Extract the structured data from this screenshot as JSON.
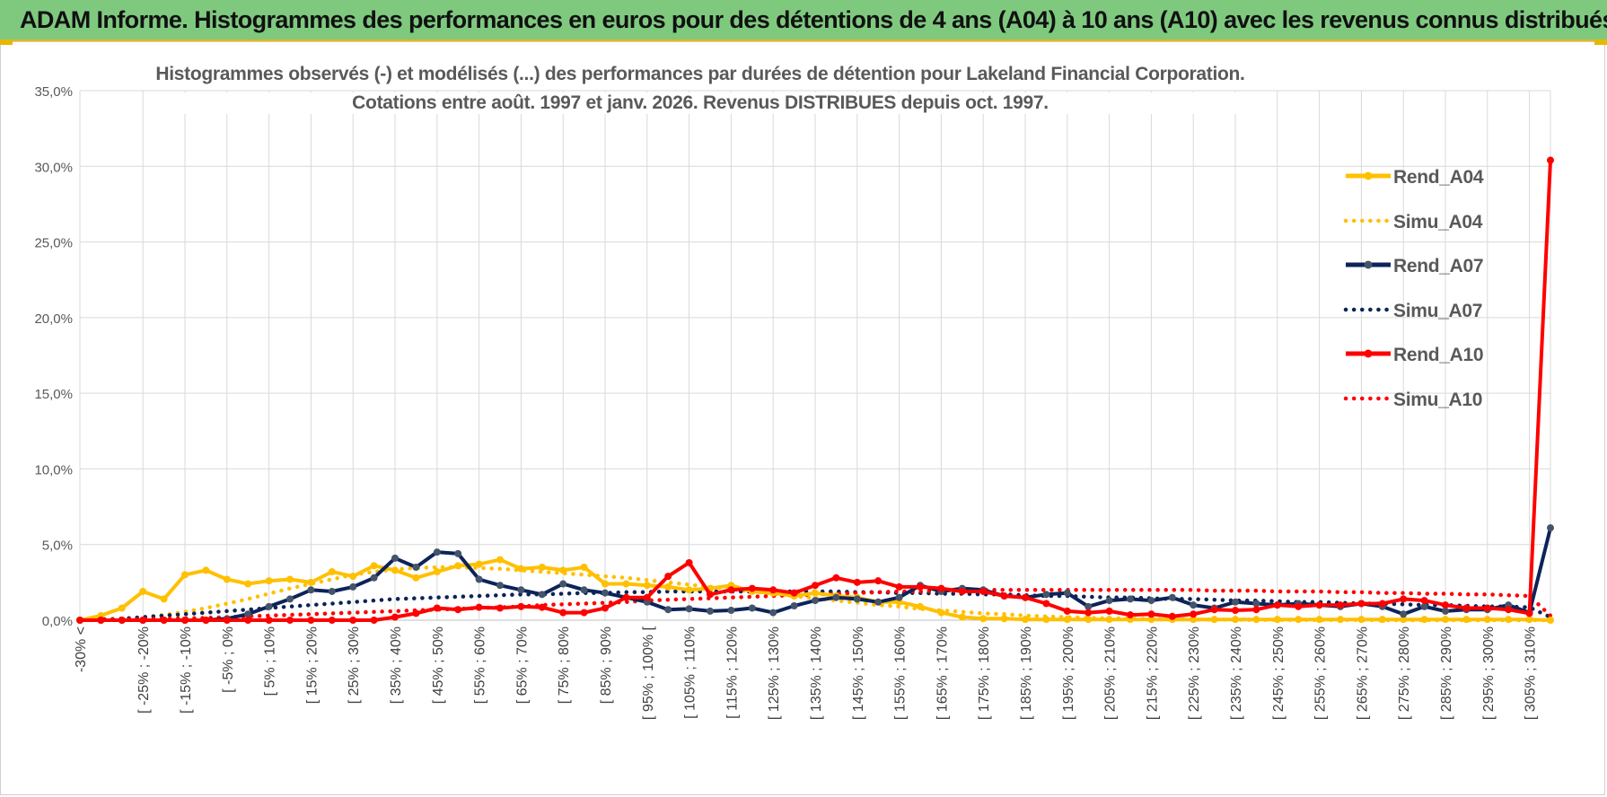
{
  "header": {
    "title": "ADAM Informe. Histogrammes des performances en euros pour des détentions de 4 ans (A04) à 10 ans (A10) avec les revenus connus distribués"
  },
  "chart_data": {
    "type": "line",
    "title_line1": "Histogrammes observés (-) et modélisés (...) des performances par durées de détention pour Lakeland Financial Corporation.",
    "title_line2": "Cotations entre août. 1997 et janv. 2026. Revenus DISTRIBUES depuis oct. 1997.",
    "xlabel": "",
    "ylabel": "",
    "ylim": [
      0,
      35
    ],
    "y_ticks": [
      "0,0%",
      "5,0%",
      "10,0%",
      "15,0%",
      "20,0%",
      "25,0%",
      "30,0%",
      "35,0%"
    ],
    "grid": true,
    "legend_position": "right",
    "x_tick_labels": [
      "-30% <",
      "[ -25% ; -20%",
      "[ -15% ; -10%",
      "[ -5% ; 0%",
      "[ 5% ; 10%",
      "[ 15% ; 20%",
      "[ 25% ; 30%",
      "[ 35% ; 40%",
      "[ 45% ; 50%",
      "[ 55% ; 60%",
      "[ 65% ; 70%",
      "[ 75% ; 80%",
      "[ 85% ; 90%",
      "[ 95% ; 100% [",
      "[ 105% ; 110%",
      "[ 115% ; 120%",
      "[ 125% ; 130%",
      "[ 135% ; 140%",
      "[ 145% ; 150%",
      "[ 155% ; 160%",
      "[ 165% ; 170%",
      "[ 175% ; 180%",
      "[ 185% ; 190%",
      "[ 195% ; 200%",
      "[ 205% ; 210%",
      "[ 215% ; 220%",
      "[ 225% ; 230%",
      "[ 235% ; 240%",
      "[ 245% ; 250%",
      "[ 255% ; 260%",
      "[ 265% ; 270%",
      "[ 275% ; 280%",
      "[ 285% ; 290%",
      "[ 295% ; 300%",
      "[ 305% ; 310%"
    ],
    "series": [
      {
        "name": "Rend_A04",
        "color": "#ffc000",
        "style": "solid",
        "values": [
          0,
          0.3,
          0.8,
          1.9,
          1.4,
          3.0,
          3.3,
          2.7,
          2.4,
          2.6,
          2.7,
          2.5,
          3.2,
          2.9,
          3.6,
          3.3,
          2.8,
          3.2,
          3.6,
          3.7,
          4.0,
          3.4,
          3.5,
          3.3,
          3.5,
          2.4,
          2.4,
          2.3,
          2.2,
          2.0,
          2.1,
          2.3,
          1.9,
          1.8,
          1.6,
          1.8,
          1.6,
          1.5,
          1.2,
          1.2,
          0.9,
          0.5,
          0.2,
          0.1,
          0.1,
          0.05,
          0.05,
          0.05,
          0.05,
          0.05,
          0.05,
          0.05,
          0.05,
          0.05,
          0.05,
          0.05,
          0.05,
          0.05,
          0.05,
          0.05,
          0.05,
          0.05,
          0.05,
          0.05,
          0.05,
          0.05,
          0.05,
          0.05,
          0.05,
          0.05,
          0
        ]
      },
      {
        "name": "Simu_A04",
        "color": "#ffc000",
        "style": "dotted",
        "values": [
          0,
          0.05,
          0.1,
          0.2,
          0.35,
          0.55,
          0.8,
          1.1,
          1.4,
          1.75,
          2.1,
          2.4,
          2.7,
          3.0,
          3.2,
          3.35,
          3.45,
          3.5,
          3.5,
          3.45,
          3.4,
          3.3,
          3.2,
          3.1,
          3.0,
          2.9,
          2.8,
          2.65,
          2.5,
          2.35,
          2.2,
          2.05,
          1.9,
          1.75,
          1.6,
          1.45,
          1.3,
          1.15,
          1.0,
          0.9,
          0.75,
          0.65,
          0.55,
          0.45,
          0.4,
          0.3,
          0.25,
          0.2,
          0.15,
          0.12,
          0.1,
          0.08,
          0.06,
          0.05,
          0.04,
          0.03,
          0.02,
          0.02,
          0.01,
          0.01,
          0.01,
          0.01,
          0,
          0,
          0,
          0,
          0,
          0,
          0,
          0,
          0
        ]
      },
      {
        "name": "Rend_A07",
        "color": "#0d2359",
        "style": "solid",
        "values": [
          0,
          0,
          0,
          0,
          0,
          0,
          0,
          0.1,
          0.4,
          0.9,
          1.4,
          2.0,
          1.9,
          2.2,
          2.8,
          4.1,
          3.5,
          4.5,
          4.4,
          2.7,
          2.3,
          2.0,
          1.7,
          2.4,
          2.0,
          1.8,
          1.5,
          1.2,
          0.7,
          0.75,
          0.6,
          0.65,
          0.8,
          0.5,
          0.95,
          1.3,
          1.5,
          1.4,
          1.2,
          1.5,
          2.3,
          1.9,
          2.1,
          2.0,
          1.6,
          1.5,
          1.7,
          1.8,
          0.9,
          1.3,
          1.4,
          1.3,
          1.5,
          1.0,
          0.8,
          1.2,
          1.1,
          1.0,
          1.1,
          1.0,
          0.9,
          1.1,
          0.9,
          0.4,
          0.9,
          0.6,
          0.7,
          0.7,
          1.0,
          0.5,
          6.1
        ]
      },
      {
        "name": "Simu_A07",
        "color": "#0d2359",
        "style": "dotted",
        "values": [
          0,
          0.05,
          0.1,
          0.2,
          0.3,
          0.4,
          0.5,
          0.6,
          0.7,
          0.8,
          0.9,
          1.0,
          1.1,
          1.2,
          1.3,
          1.4,
          1.45,
          1.5,
          1.55,
          1.6,
          1.65,
          1.7,
          1.7,
          1.75,
          1.8,
          1.8,
          1.85,
          1.85,
          1.9,
          1.9,
          1.9,
          1.9,
          1.9,
          1.9,
          1.9,
          1.9,
          1.9,
          1.85,
          1.85,
          1.8,
          1.8,
          1.75,
          1.75,
          1.7,
          1.7,
          1.65,
          1.6,
          1.6,
          1.55,
          1.5,
          1.5,
          1.45,
          1.4,
          1.4,
          1.35,
          1.3,
          1.3,
          1.25,
          1.2,
          1.2,
          1.15,
          1.1,
          1.1,
          1.05,
          1.0,
          1.0,
          0.95,
          0.9,
          0.9,
          0.85,
          0.2
        ]
      },
      {
        "name": "Rend_A10",
        "color": "#ff0000",
        "style": "solid",
        "values": [
          0,
          0,
          0,
          0,
          0,
          0,
          0,
          0,
          0,
          0,
          0,
          0,
          0,
          0,
          0,
          0.2,
          0.45,
          0.8,
          0.7,
          0.85,
          0.8,
          0.9,
          0.85,
          0.5,
          0.5,
          0.8,
          1.5,
          1.5,
          2.9,
          3.8,
          1.7,
          2.0,
          2.1,
          2.0,
          1.8,
          2.3,
          2.8,
          2.5,
          2.6,
          2.2,
          2.2,
          2.1,
          1.9,
          1.9,
          1.6,
          1.5,
          1.1,
          0.6,
          0.5,
          0.6,
          0.35,
          0.4,
          0.25,
          0.4,
          0.7,
          0.65,
          0.7,
          1.0,
          0.9,
          1.0,
          1.0,
          1.1,
          1.1,
          1.4,
          1.3,
          1.0,
          0.8,
          0.8,
          0.7,
          0.45,
          30.4
        ]
      },
      {
        "name": "Simu_A10",
        "color": "#ff0000",
        "style": "dotted",
        "values": [
          0,
          0.02,
          0.05,
          0.08,
          0.1,
          0.12,
          0.15,
          0.2,
          0.25,
          0.3,
          0.35,
          0.4,
          0.45,
          0.5,
          0.55,
          0.6,
          0.65,
          0.7,
          0.75,
          0.8,
          0.85,
          0.9,
          1.0,
          1.05,
          1.1,
          1.15,
          1.2,
          1.3,
          1.35,
          1.4,
          1.45,
          1.5,
          1.55,
          1.6,
          1.65,
          1.7,
          1.75,
          1.8,
          1.85,
          1.9,
          1.9,
          1.95,
          1.95,
          2.0,
          2.0,
          2.0,
          2.0,
          2.0,
          2.0,
          2.0,
          2.0,
          2.0,
          2.0,
          2.0,
          1.95,
          1.95,
          1.95,
          1.9,
          1.9,
          1.9,
          1.85,
          1.85,
          1.8,
          1.8,
          1.75,
          1.75,
          1.7,
          1.7,
          1.65,
          1.6,
          0.3
        ]
      }
    ]
  }
}
